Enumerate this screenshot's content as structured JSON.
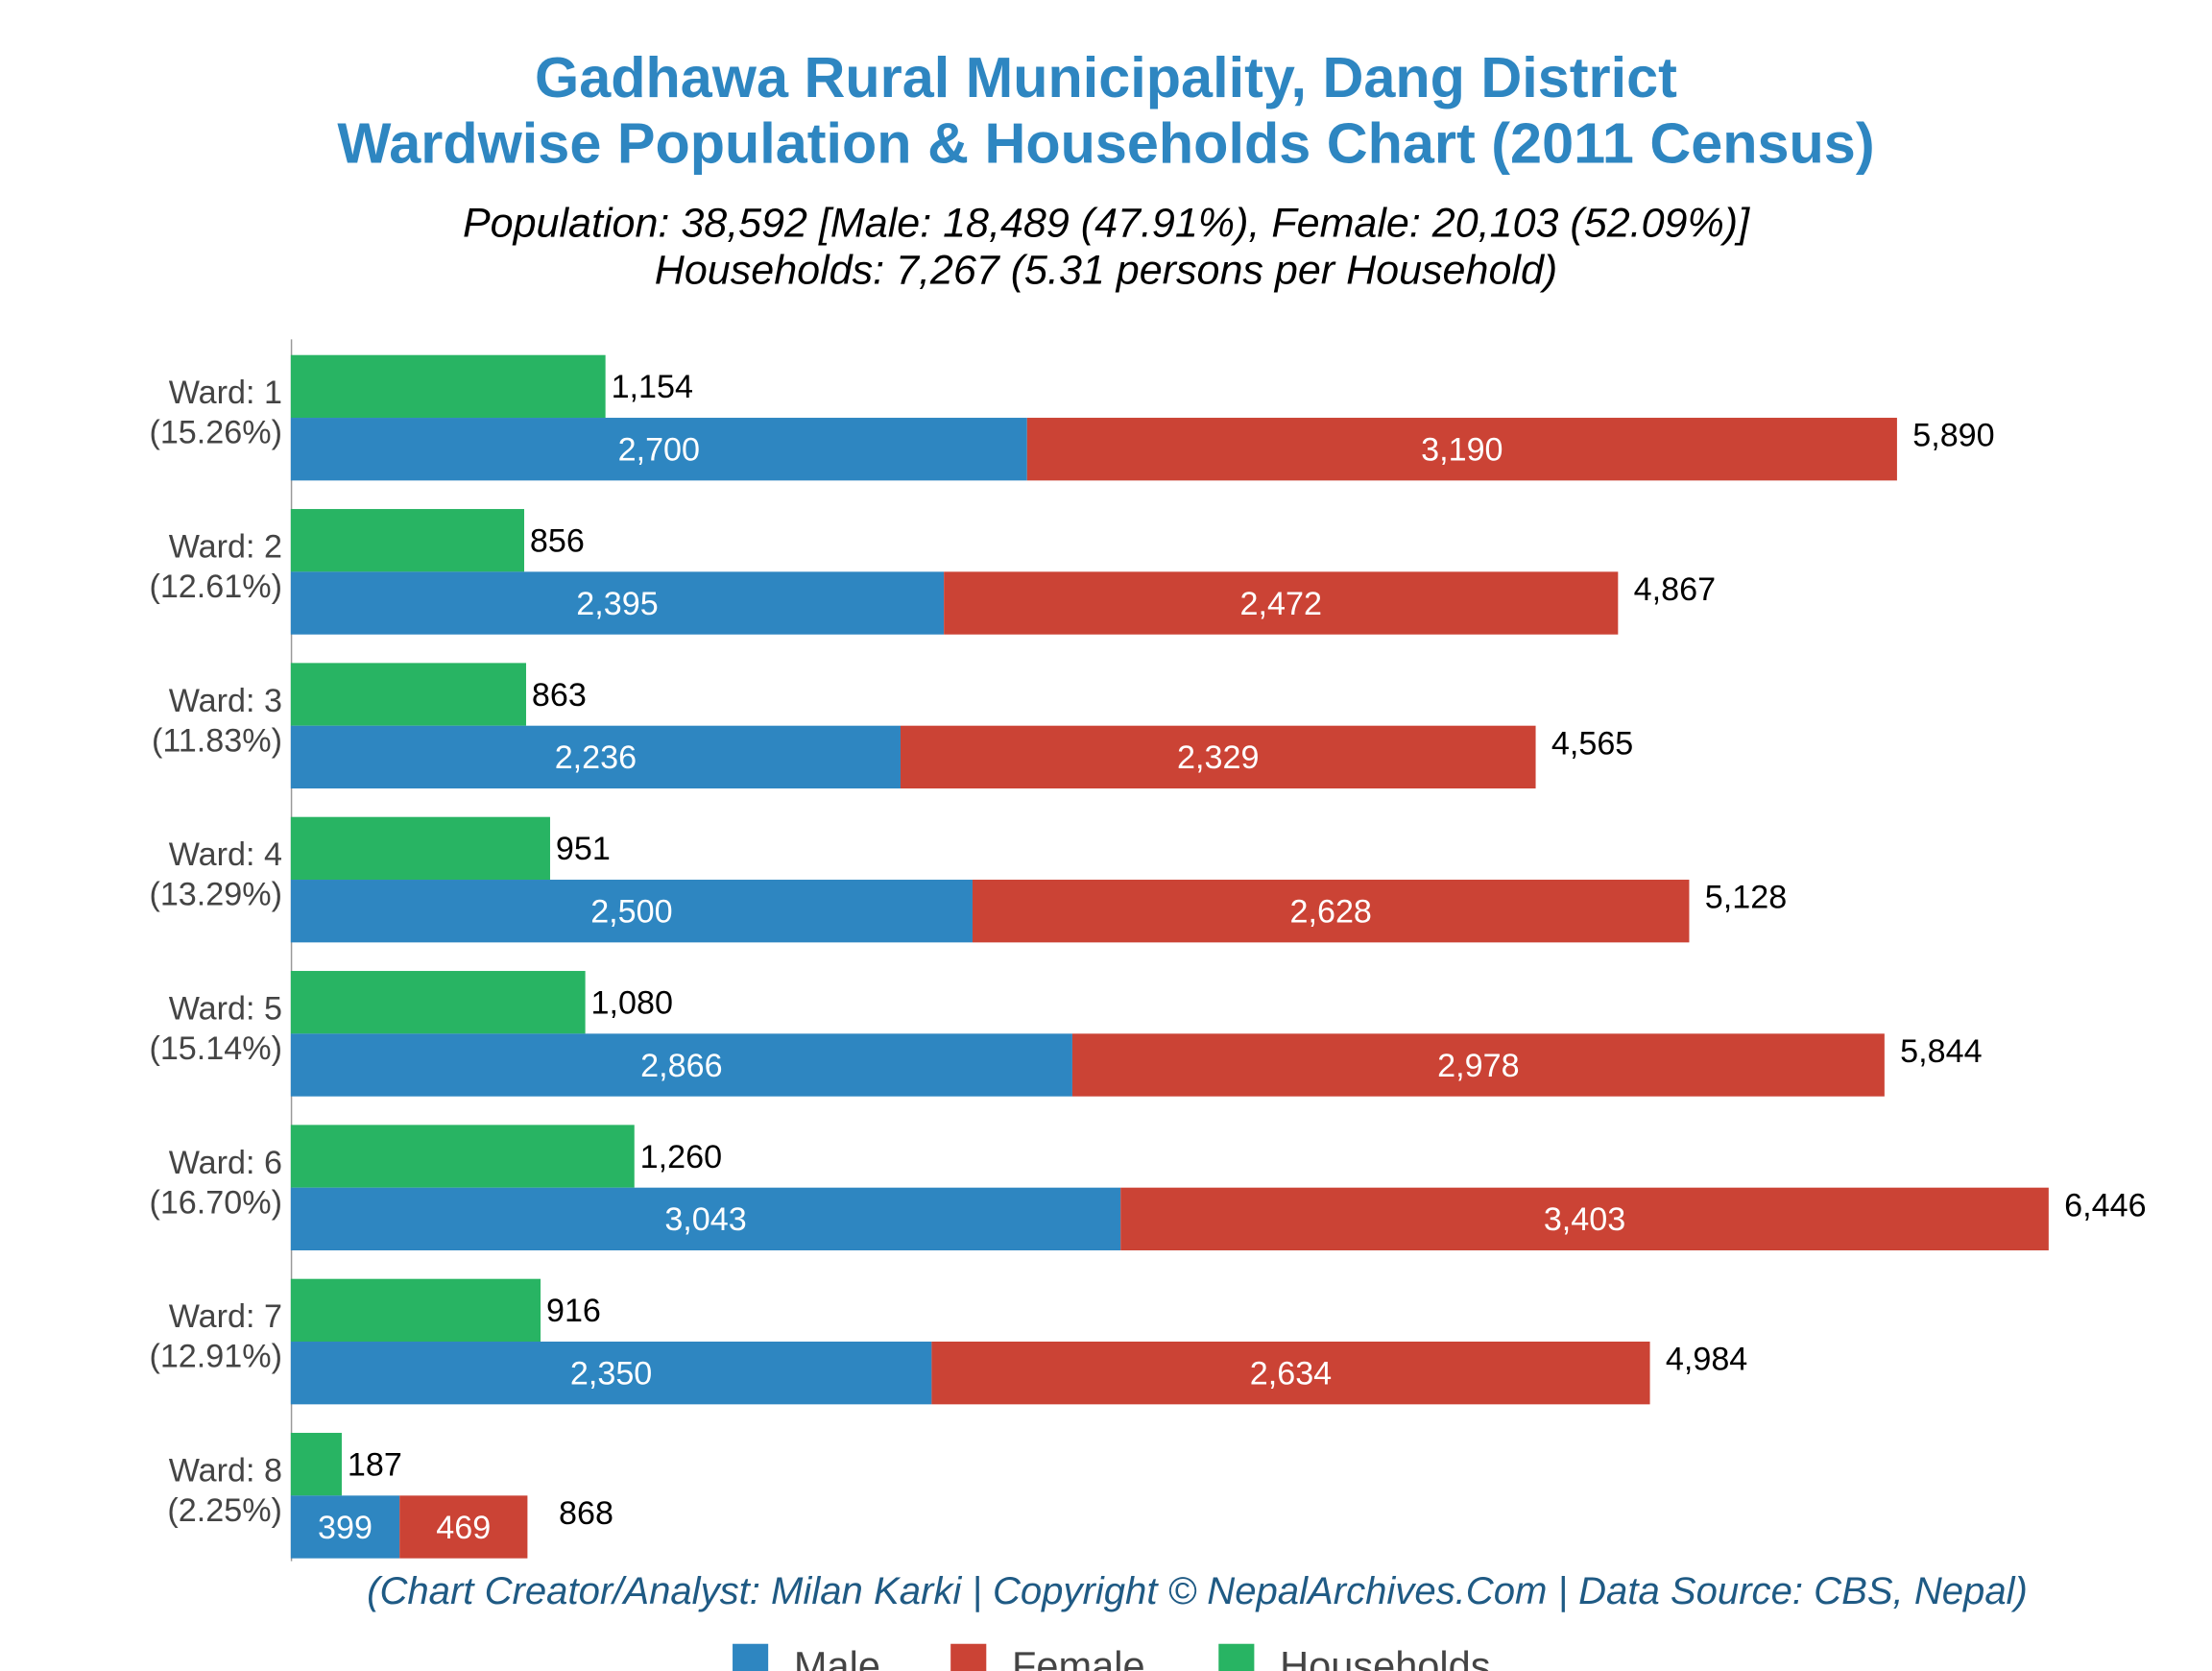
{
  "chart_data": {
    "type": "bar",
    "orientation": "horizontal",
    "stacked_population": true,
    "title": [
      "Gadhawa Rural Municipality, Dang District",
      "Wardwise Population & Households Chart (2011 Census)"
    ],
    "subtitle": [
      "Population: 38,592 [Male: 18,489 (47.91%), Female: 20,103 (52.09%)]",
      "Households: 7,267 (5.31 persons per Household)"
    ],
    "footer": "(Chart Creator/Analyst: Milan Karki | Copyright © NepalArchives.Com | Data Source: CBS, Nepal)",
    "categories": [
      "Ward: 1",
      "Ward: 2",
      "Ward: 3",
      "Ward: 4",
      "Ward: 5",
      "Ward: 6",
      "Ward: 7",
      "Ward: 8"
    ],
    "category_shares": [
      "(15.26%)",
      "(12.61%)",
      "(11.83%)",
      "(13.29%)",
      "(15.14%)",
      "(16.70%)",
      "(12.91%)",
      "(2.25%)"
    ],
    "series": [
      {
        "name": "Male",
        "color": "#2e86c1",
        "values": [
          2700,
          2395,
          2236,
          2500,
          2866,
          3043,
          2350,
          399
        ],
        "labels": [
          "2,700",
          "2,395",
          "2,236",
          "2,500",
          "2,866",
          "3,043",
          "2,350",
          "399"
        ]
      },
      {
        "name": "Female",
        "color": "#cb4335",
        "values": [
          3190,
          2472,
          2329,
          2628,
          2978,
          3403,
          2634,
          469
        ],
        "labels": [
          "3,190",
          "2,472",
          "2,329",
          "2,628",
          "2,978",
          "3,403",
          "2,634",
          "469"
        ]
      },
      {
        "name": "Households",
        "color": "#28b463",
        "values": [
          1154,
          856,
          863,
          951,
          1080,
          1260,
          916,
          187
        ],
        "labels": [
          "1,154",
          "856",
          "863",
          "951",
          "1,080",
          "1,260",
          "916",
          "187"
        ]
      }
    ],
    "totals": [
      5890,
      4867,
      4565,
      5128,
      5844,
      6446,
      4984,
      868
    ],
    "total_labels": [
      "5,890",
      "4,867",
      "4,565",
      "5,128",
      "5,844",
      "6,446",
      "4,984",
      "868"
    ],
    "legend_position": "bottom",
    "grid": false
  }
}
